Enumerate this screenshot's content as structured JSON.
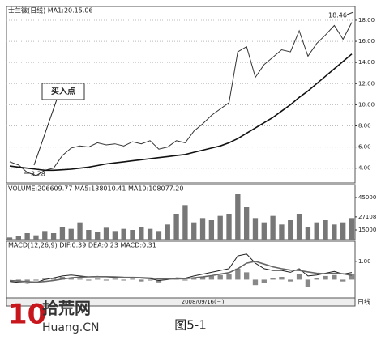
{
  "chart_data": [
    {
      "type": "line",
      "title": "士兰微(日线) MA1:20.15.06",
      "high": 18.46,
      "low": 3.28,
      "callout": "买入点",
      "ylim": [
        2.6,
        19.3
      ],
      "yticks": [
        {
          "value": 4,
          "label": "4.00"
        },
        {
          "value": 6,
          "label": "6.00"
        },
        {
          "value": 8,
          "label": "8.00"
        },
        {
          "value": 10,
          "label": "10.00"
        },
        {
          "value": 12,
          "label": "12.00"
        },
        {
          "value": 14,
          "label": "14.00"
        },
        {
          "value": 16,
          "label": "16.00"
        },
        {
          "value": 18,
          "label": "18.00"
        }
      ],
      "grid": true,
      "series": [
        {
          "color": "#333333",
          "values": [
            4.6,
            4.3,
            3.6,
            3.3,
            3.8,
            4.0,
            5.2,
            5.9,
            6.1,
            6.0,
            6.4,
            6.2,
            6.3,
            6.1,
            6.5,
            6.3,
            6.6,
            5.8,
            6.0,
            6.6,
            6.4,
            7.5,
            8.2,
            9.0,
            9.6,
            10.2,
            15.0,
            15.5,
            12.6,
            13.8,
            14.5,
            15.2,
            15.0,
            17.0,
            14.6,
            15.8,
            16.6,
            17.5,
            16.2,
            17.8
          ]
        },
        {
          "color": "#111111",
          "values": [
            4.2,
            4.1,
            4.0,
            3.9,
            3.8,
            3.8,
            3.85,
            3.9,
            4.0,
            4.1,
            4.25,
            4.4,
            4.5,
            4.6,
            4.7,
            4.8,
            4.9,
            5.0,
            5.1,
            5.2,
            5.3,
            5.5,
            5.7,
            5.9,
            6.1,
            6.4,
            6.8,
            7.3,
            7.8,
            8.3,
            8.8,
            9.4,
            10.0,
            10.7,
            11.3,
            12.0,
            12.7,
            13.4,
            14.1,
            14.8
          ]
        }
      ]
    },
    {
      "type": "bar",
      "title": "VOLUME:206609.77  MA5:138010.41  MA10:108077.20",
      "ylim": [
        6000,
        57000
      ],
      "yticks": [
        15000,
        27108,
        45000
      ],
      "color": "#777777",
      "values": [
        8000,
        9000,
        12000,
        10000,
        14000,
        12000,
        18000,
        16000,
        22000,
        15000,
        13000,
        17000,
        14000,
        16000,
        15000,
        18000,
        16000,
        14000,
        20000,
        30000,
        38000,
        22000,
        26000,
        24000,
        28000,
        30000,
        48000,
        36000,
        26000,
        22000,
        28000,
        20000,
        24000,
        30000,
        18000,
        22000,
        24000,
        20000,
        22000,
        26000
      ]
    },
    {
      "type": "bar",
      "title": "MACD(12,26,9)  DIF:0.39  DEA:0.23  MACD:0.31",
      "ylim": [
        -1.0,
        2.1
      ],
      "yticks": [
        {
          "value": 1,
          "label": "1.00"
        }
      ],
      "color": "#888888",
      "categories": [
        null,
        null,
        null,
        null,
        null,
        null,
        null,
        null,
        null,
        null,
        null,
        null,
        null,
        null,
        null,
        null,
        null,
        null,
        null,
        null,
        null,
        null,
        "2008/09/16(三)",
        null,
        null,
        null,
        null,
        null,
        null,
        null,
        null,
        null,
        null,
        null,
        null,
        null,
        null,
        null,
        null,
        null
      ],
      "values": [
        0,
        -0.05,
        -0.1,
        -0.05,
        0.05,
        0.1,
        0.15,
        0.1,
        0.05,
        -0.05,
        0.05,
        -0.05,
        0.05,
        -0.05,
        0.05,
        -0.1,
        -0.05,
        -0.15,
        0.05,
        0.1,
        -0.05,
        0.1,
        0.15,
        0.2,
        0.25,
        0.3,
        0.6,
        0.4,
        -0.3,
        -0.2,
        0.1,
        0.15,
        -0.1,
        0.3,
        -0.4,
        0.1,
        0.2,
        0.25,
        -0.1,
        0.31
      ],
      "series": [
        {
          "color": "#222222",
          "values": [
            -0.1,
            -0.15,
            -0.2,
            -0.15,
            0,
            0.1,
            0.2,
            0.25,
            0.2,
            0.15,
            0.18,
            0.15,
            0.12,
            0.1,
            0.12,
            0.08,
            0.05,
            -0.05,
            0,
            0.1,
            0.08,
            0.2,
            0.3,
            0.4,
            0.5,
            0.6,
            1.3,
            1.4,
            0.9,
            0.6,
            0.5,
            0.5,
            0.4,
            0.6,
            0.2,
            0.25,
            0.35,
            0.45,
            0.3,
            0.39
          ]
        },
        {
          "color": "#666666",
          "values": [
            -0.05,
            -0.08,
            -0.12,
            -0.13,
            -0.1,
            -0.05,
            0.03,
            0.1,
            0.14,
            0.15,
            0.16,
            0.16,
            0.15,
            0.13,
            0.12,
            0.11,
            0.09,
            0.05,
            0.03,
            0.04,
            0.05,
            0.1,
            0.15,
            0.22,
            0.3,
            0.38,
            0.6,
            0.9,
            1.0,
            0.85,
            0.7,
            0.6,
            0.52,
            0.5,
            0.42,
            0.35,
            0.32,
            0.35,
            0.32,
            0.23
          ]
        }
      ]
    }
  ],
  "period": "日线",
  "watermark": {
    "logo": "10",
    "site": "拾荒网",
    "url": "Huang.CN"
  },
  "caption": "图5-1"
}
